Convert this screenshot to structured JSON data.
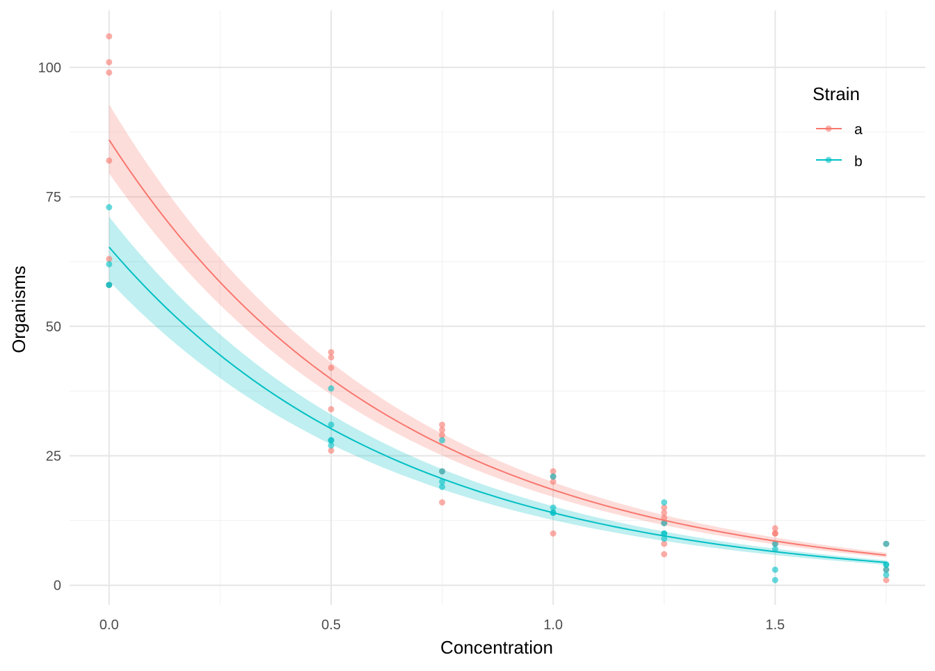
{
  "chart_data": {
    "type": "scatter",
    "title": "",
    "xlabel": "Concentration",
    "ylabel": "Organisms",
    "xlim": [
      -0.089,
      1.838
    ],
    "ylim": [
      -3.8,
      111
    ],
    "x_ticks": [
      0.0,
      0.5,
      1.0,
      1.5
    ],
    "x_tick_labels": [
      "0.0",
      "0.5",
      "1.0",
      "1.5"
    ],
    "x_minor": [
      0.25,
      0.75,
      1.25,
      1.75
    ],
    "y_ticks": [
      0,
      25,
      50,
      75,
      100
    ],
    "y_tick_labels": [
      "0",
      "25",
      "50",
      "75",
      "100"
    ],
    "y_minor": [
      12.5,
      37.5,
      62.5,
      87.5
    ],
    "grid": true,
    "legend": {
      "title": "Strain",
      "position": "right-top"
    },
    "series": [
      {
        "name": "a",
        "color": "#F8766D",
        "points": [
          [
            0,
            106
          ],
          [
            0,
            101
          ],
          [
            0,
            99
          ],
          [
            0,
            82
          ],
          [
            0,
            63
          ],
          [
            0,
            58
          ],
          [
            0.5,
            45
          ],
          [
            0.5,
            44
          ],
          [
            0.5,
            42
          ],
          [
            0.5,
            34
          ],
          [
            0.5,
            26
          ],
          [
            0.75,
            31
          ],
          [
            0.75,
            30
          ],
          [
            0.75,
            29
          ],
          [
            0.75,
            22
          ],
          [
            0.75,
            16
          ],
          [
            1.0,
            22
          ],
          [
            1.0,
            20
          ],
          [
            1.0,
            21
          ],
          [
            1.0,
            10
          ],
          [
            1.25,
            15
          ],
          [
            1.25,
            14
          ],
          [
            1.25,
            13
          ],
          [
            1.25,
            12
          ],
          [
            1.25,
            8
          ],
          [
            1.25,
            6
          ],
          [
            1.5,
            11
          ],
          [
            1.5,
            10
          ],
          [
            1.5,
            10
          ],
          [
            1.5,
            8
          ],
          [
            1.75,
            8
          ],
          [
            1.75,
            3
          ],
          [
            1.75,
            1
          ]
        ],
        "fit": {
          "model": "exponential",
          "intercept": 86,
          "rate": 1.54,
          "ci_low_factor": 0.925,
          "ci_high_factor": 1.08
        }
      },
      {
        "name": "b",
        "color": "#00BFC4",
        "points": [
          [
            0,
            73
          ],
          [
            0,
            62
          ],
          [
            0,
            58
          ],
          [
            0,
            58
          ],
          [
            0.5,
            38
          ],
          [
            0.5,
            31
          ],
          [
            0.5,
            28
          ],
          [
            0.5,
            28
          ],
          [
            0.5,
            27
          ],
          [
            0.75,
            28
          ],
          [
            0.75,
            22
          ],
          [
            0.75,
            20
          ],
          [
            0.75,
            19
          ],
          [
            1.0,
            21
          ],
          [
            1.0,
            15
          ],
          [
            1.0,
            14
          ],
          [
            1.0,
            14
          ],
          [
            1.25,
            16
          ],
          [
            1.25,
            12
          ],
          [
            1.25,
            10
          ],
          [
            1.25,
            10
          ],
          [
            1.25,
            9
          ],
          [
            1.5,
            8
          ],
          [
            1.5,
            7
          ],
          [
            1.5,
            3
          ],
          [
            1.5,
            1
          ],
          [
            1.75,
            8
          ],
          [
            1.75,
            4
          ],
          [
            1.75,
            4
          ],
          [
            1.75,
            3
          ],
          [
            1.75,
            2
          ]
        ],
        "fit": {
          "model": "exponential",
          "intercept": 65.3,
          "rate": 1.54,
          "ci_low_factor": 0.9,
          "ci_high_factor": 1.09
        }
      }
    ]
  }
}
